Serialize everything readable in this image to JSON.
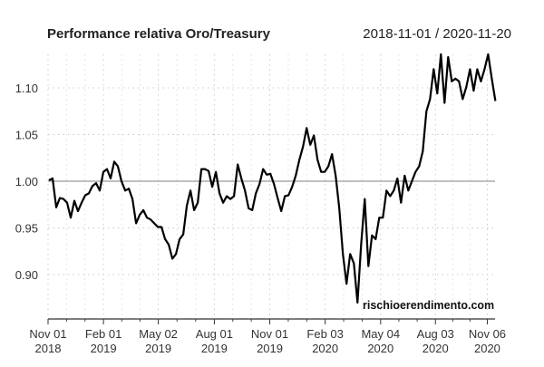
{
  "chart_data": {
    "type": "line",
    "title": "Performance relativa Oro/Treasury",
    "date_range": "2018-11-01 / 2020-11-20",
    "watermark": "rischioerendimento.com",
    "xlabel": "",
    "ylabel": "",
    "ylim": [
      0.85,
      1.14
    ],
    "xlim_days": [
      0,
      750
    ],
    "reference_line": 1.0,
    "grid": true,
    "y_ticks": [
      {
        "value": 0.9,
        "label": "0.90"
      },
      {
        "value": 0.95,
        "label": "0.95"
      },
      {
        "value": 1.0,
        "label": "1.00"
      },
      {
        "value": 1.05,
        "label": "1.05"
      },
      {
        "value": 1.1,
        "label": "1.10"
      }
    ],
    "x_ticks": [
      {
        "day": 0,
        "line1": "Nov 01",
        "line2": "2018"
      },
      {
        "day": 93,
        "line1": "Feb 01",
        "line2": "2019"
      },
      {
        "day": 185,
        "line1": "May 02",
        "line2": "2019"
      },
      {
        "day": 279,
        "line1": "Aug 01",
        "line2": "2019"
      },
      {
        "day": 372,
        "line1": "Nov 01",
        "line2": "2019"
      },
      {
        "day": 465,
        "line1": "Feb 03",
        "line2": "2020"
      },
      {
        "day": 558,
        "line1": "May 04",
        "line2": "2020"
      },
      {
        "day": 650,
        "line1": "Aug 03",
        "line2": "2020"
      },
      {
        "day": 737,
        "line1": "Nov 06",
        "line2": "2020"
      }
    ],
    "series": [
      {
        "name": "Oro/Treasury",
        "x_start_day": 1.5,
        "x_step_days": 6.09,
        "values": [
          1.001,
          1.003,
          0.972,
          0.982,
          0.981,
          0.977,
          0.961,
          0.979,
          0.968,
          0.977,
          0.985,
          0.987,
          0.995,
          0.998,
          0.99,
          1.01,
          1.013,
          1.003,
          1.021,
          1.016,
          1.0,
          0.99,
          0.992,
          0.981,
          0.955,
          0.964,
          0.969,
          0.961,
          0.959,
          0.955,
          0.951,
          0.951,
          0.938,
          0.932,
          0.917,
          0.922,
          0.938,
          0.943,
          0.974,
          0.99,
          0.969,
          0.977,
          1.013,
          1.013,
          1.011,
          0.994,
          1.01,
          0.987,
          0.977,
          0.984,
          0.981,
          0.984,
          1.018,
          1.003,
          0.99,
          0.971,
          0.969,
          0.987,
          0.997,
          1.013,
          1.007,
          1.008,
          0.997,
          0.982,
          0.968,
          0.984,
          0.985,
          0.994,
          1.006,
          1.023,
          1.037,
          1.057,
          1.039,
          1.049,
          1.023,
          1.01,
          1.01,
          1.016,
          1.029,
          1.006,
          0.971,
          0.922,
          0.89,
          0.922,
          0.912,
          0.87,
          0.932,
          0.981,
          0.909,
          0.942,
          0.938,
          0.961,
          0.961,
          0.99,
          0.984,
          0.99,
          1.003,
          0.977,
          1.006,
          0.99,
          1.0,
          1.01,
          1.016,
          1.032,
          1.075,
          1.088,
          1.12,
          1.094,
          1.136,
          1.084,
          1.133,
          1.107,
          1.11,
          1.107,
          1.088,
          1.101,
          1.12,
          1.097,
          1.12,
          1.107,
          1.12,
          1.136,
          1.11,
          1.086
        ]
      }
    ]
  }
}
